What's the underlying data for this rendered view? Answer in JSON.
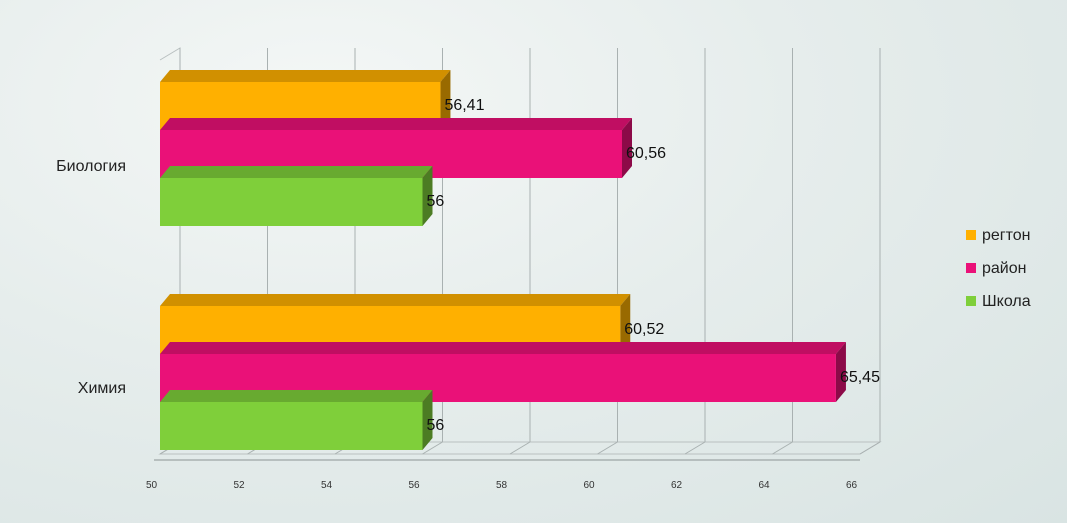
{
  "chart_data": {
    "type": "bar",
    "orientation": "horizontal",
    "three_d": true,
    "categories": [
      "Биология",
      "Химия"
    ],
    "series": [
      {
        "name": "регтон",
        "color": "#ffb000",
        "labels": [
          "56,41",
          "60,52"
        ],
        "values": [
          56.41,
          60.52
        ]
      },
      {
        "name": "район",
        "color": "#ea1178",
        "labels": [
          "60,56",
          "65,45"
        ],
        "values": [
          60.56,
          65.45
        ]
      },
      {
        "name": "Школа",
        "color": "#7fcf3a",
        "labels": [
          "56",
          "56"
        ],
        "values": [
          56,
          56
        ]
      }
    ],
    "xticks": [
      "50",
      "52",
      "54",
      "56",
      "58",
      "60",
      "62",
      "64",
      "66"
    ],
    "xlim": [
      50,
      66
    ],
    "grid": true,
    "legend_position": "right"
  }
}
